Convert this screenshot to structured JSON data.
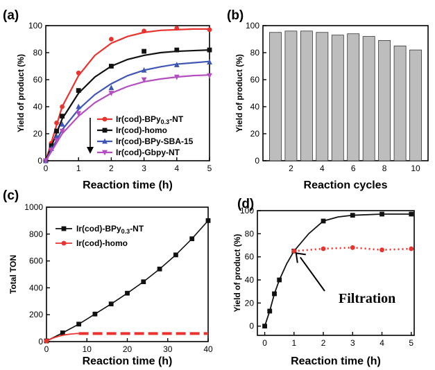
{
  "chart_data": [
    {
      "panel": "(a)",
      "type": "line",
      "xlabel": "Reaction time (h)",
      "ylabel": "Yield of product (%)",
      "xlim": [
        0,
        5
      ],
      "ylim": [
        0,
        100
      ],
      "xticks": [
        0,
        1,
        2,
        3,
        4,
        5
      ],
      "yticks": [
        0,
        20,
        40,
        60,
        80,
        100
      ],
      "legend_position": "bottom-right",
      "series": [
        {
          "name": "Ir(cod)-BPy",
          "name_sub": "0.3",
          "name_tail": "-NT",
          "color": "#e8332e",
          "marker": "circle",
          "x": [
            0,
            0.17,
            0.33,
            0.5,
            1,
            2,
            3,
            4,
            5
          ],
          "y": [
            0,
            13,
            28,
            40,
            65,
            90,
            96,
            98,
            97
          ],
          "fit": [
            0,
            40,
            63,
            78,
            87,
            92,
            95,
            96.5,
            97,
            97.5,
            97.5
          ]
        },
        {
          "name": "Ir(cod)-homo",
          "color": "#111111",
          "marker": "square",
          "x": [
            0,
            0.17,
            0.33,
            0.5,
            1,
            2,
            3,
            4,
            5
          ],
          "y": [
            0,
            11,
            22,
            33,
            52,
            70,
            81,
            82,
            82
          ],
          "fit": [
            0,
            31,
            50,
            62,
            70,
            75,
            78,
            80,
            81,
            81.5,
            82
          ]
        },
        {
          "name": "Ir(cod)-BPy-SBA-15",
          "color": "#3f56b5",
          "marker": "triangle-up",
          "x": [
            0,
            0.17,
            0.33,
            0.5,
            1,
            2,
            3,
            4,
            5
          ],
          "y": [
            0,
            9,
            18,
            27,
            40,
            54,
            67,
            71,
            73
          ],
          "fit": [
            0,
            23,
            38,
            49,
            57,
            63,
            67,
            69.5,
            71.5,
            72.5,
            73.5
          ]
        },
        {
          "name": "Ir(cod)-Gbpy-NT",
          "color": "#b44ec0",
          "marker": "triangle-down",
          "x": [
            0,
            0.17,
            0.33,
            0.5,
            1,
            2,
            3,
            4,
            5
          ],
          "y": [
            0,
            8,
            15,
            22,
            35,
            50,
            60,
            62,
            63
          ],
          "fit": [
            0,
            20,
            33,
            43,
            50,
            55,
            58.5,
            60.5,
            62,
            63,
            63.5
          ]
        }
      ]
    },
    {
      "panel": "(b)",
      "type": "bar",
      "xlabel": "Reaction cycles",
      "ylabel": "Yield of product (%)",
      "ylim": [
        0,
        100
      ],
      "yticks": [
        0,
        20,
        40,
        60,
        80,
        100
      ],
      "xticks": [
        2,
        4,
        6,
        8,
        10
      ],
      "categories": [
        1,
        2,
        3,
        4,
        5,
        6,
        7,
        8,
        9,
        10
      ],
      "values": [
        95,
        96,
        96,
        95,
        93,
        94,
        92,
        89,
        85,
        82
      ],
      "bar_color": "#bdbdbd"
    },
    {
      "panel": "(c)",
      "type": "line",
      "xlabel": "Reaction time (h)",
      "ylabel": "Total TON",
      "xlim": [
        0,
        40
      ],
      "ylim": [
        0,
        1000
      ],
      "xticks": [
        0,
        10,
        20,
        30,
        40
      ],
      "yticks": [
        0,
        200,
        400,
        600,
        800,
        1000
      ],
      "legend_position": "top-left",
      "series": [
        {
          "name": "Ir(cod)-BPy",
          "name_sub": "0.3",
          "name_tail": "-NT",
          "color": "#111111",
          "marker": "square",
          "x": [
            0,
            4,
            8,
            12,
            16,
            20,
            24,
            28,
            32,
            36,
            40
          ],
          "y": [
            5,
            65,
            130,
            205,
            280,
            360,
            445,
            540,
            645,
            765,
            900
          ]
        },
        {
          "name": "Ir(cod)-homo",
          "color": "#e8332e",
          "marker": "circle",
          "x": [
            0,
            1.5,
            3,
            4.5,
            6,
            7.5,
            8
          ],
          "y": [
            5,
            25,
            40,
            50,
            56,
            60,
            60
          ],
          "plateau": {
            "x": [
              8,
              40
            ],
            "y": 60
          }
        }
      ]
    },
    {
      "panel": "(d)",
      "type": "line",
      "xlabel": "Reaction time (h)",
      "ylabel": "Yield of product (%)",
      "xlim": [
        0,
        5
      ],
      "ylim": [
        0,
        100
      ],
      "xticks": [
        0,
        1,
        2,
        3,
        4,
        5
      ],
      "yticks": [
        0,
        20,
        40,
        60,
        80,
        100
      ],
      "annotation": "Filtration",
      "series": [
        {
          "color": "#111111",
          "marker": "square",
          "x": [
            0,
            0.17,
            0.33,
            0.5,
            1,
            2,
            3,
            4,
            5
          ],
          "y": [
            0,
            13,
            28,
            40,
            65,
            91,
            96,
            97,
            97
          ]
        },
        {
          "color": "#e8332e",
          "marker": "circle",
          "dotted": true,
          "x": [
            1,
            2,
            3,
            4,
            5
          ],
          "y": [
            65,
            67,
            68,
            66,
            67
          ]
        }
      ]
    }
  ]
}
